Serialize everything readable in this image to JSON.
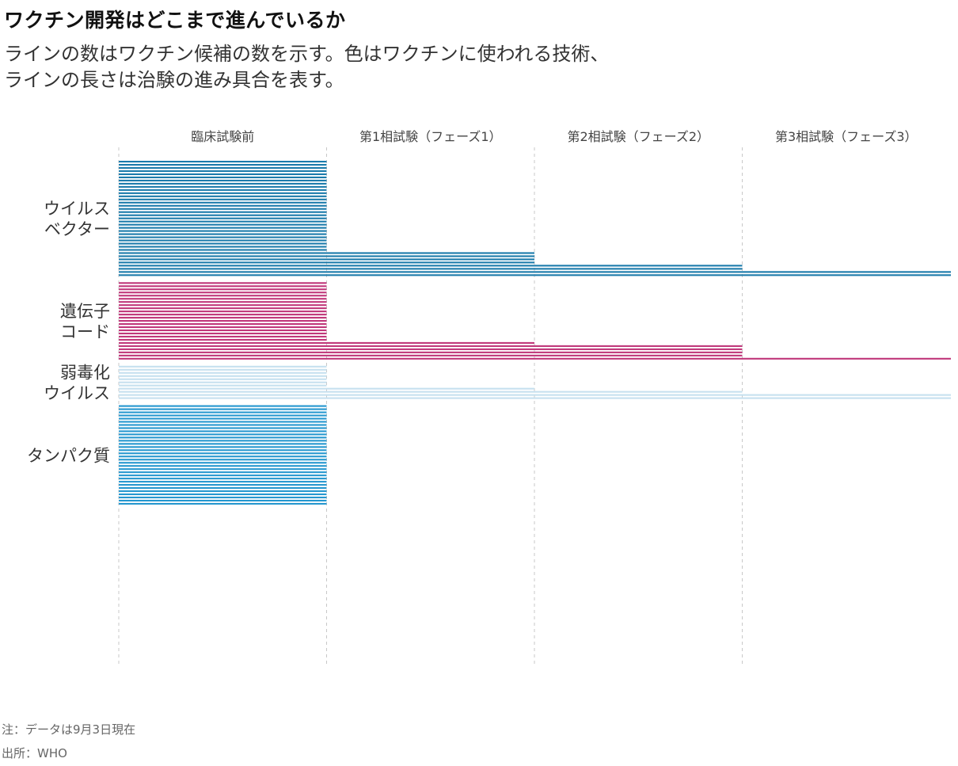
{
  "header": {
    "title": "ワクチン開発はどこまで進んでいるか",
    "subtitle_line1": "ラインの数はワクチン候補の数を示す。色はワクチンに使われる技術、",
    "subtitle_line2": "ラインの長さは治験の進み具合を表す。"
  },
  "footer": {
    "note": "注：データは9月3日現在",
    "source": "出所：WHO"
  },
  "chart_data": {
    "type": "bar",
    "orientation": "horizontal",
    "note": "each line represents one vaccine candidate; line length = furthest trial phase reached",
    "phases": [
      "臨床試験前",
      "第1相試験（フェーズ1）",
      "第2相試験（フェーズ2）",
      "第3相試験（フェーズ3）"
    ],
    "groups": [
      {
        "label_lines": [
          "ウイルス",
          "ベクター"
        ],
        "color": "#1b7bab",
        "counts_by_furthest_phase": [
          29,
          4,
          2,
          2
        ]
      },
      {
        "label_lines": [
          "遺伝子",
          "コード"
        ],
        "color": "#c0377a",
        "counts_by_furthest_phase": [
          19,
          1,
          4,
          1
        ]
      },
      {
        "label_lines": [
          "弱毒化",
          "ウイルス"
        ],
        "color": "#c6e0ef",
        "counts_by_furthest_phase": [
          7,
          1,
          1,
          2
        ]
      },
      {
        "label_lines": [
          "タンパク質"
        ],
        "color": "#2597cf",
        "counts_by_furthest_phase": [
          32,
          0,
          0,
          0
        ]
      }
    ]
  }
}
